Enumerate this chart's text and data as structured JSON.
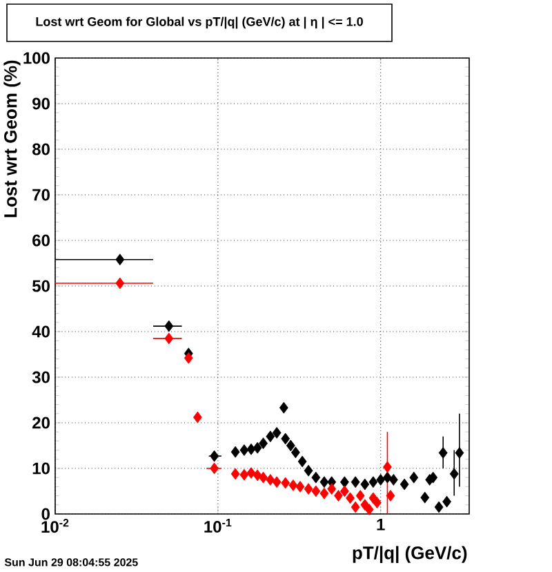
{
  "chart_data": {
    "type": "scatter",
    "title": "Lost wrt Geom for Global vs pT/|q| (GeV/c) at | η | <= 1.0",
    "xlabel": "pT/|q| (GeV/c)",
    "ylabel": "Lost wrt Geom (%)",
    "annotations": [
      "Sun Jun 29 08:04:55 2025"
    ],
    "log": "x",
    "grid": true,
    "marker": "diamond",
    "xlim": [
      0.01,
      3.5
    ],
    "ylim": [
      0,
      100
    ],
    "xticks": [
      {
        "value": 0.01,
        "label": "10$^{-2}$"
      },
      {
        "value": 0.1,
        "label": "10$^{-1}$"
      },
      1
    ],
    "yticks": [
      0,
      10,
      20,
      30,
      40,
      50,
      60,
      70,
      80,
      90,
      100
    ],
    "series": [
      {
        "color": "#000000",
        "x": [
          0.025,
          0.05,
          0.066,
          0.095,
          0.128,
          0.145,
          0.16,
          0.175,
          0.19,
          0.21,
          0.23,
          0.254,
          0.26,
          0.28,
          0.3,
          0.33,
          0.36,
          0.4,
          0.45,
          0.5,
          0.6,
          0.7,
          0.8,
          0.9,
          1.0,
          1.1,
          1.2,
          1.4,
          1.6,
          1.87,
          2.0,
          2.1,
          2.28,
          2.42,
          2.55,
          2.83,
          3.05
        ],
        "values": [
          55.8,
          41.2,
          35.2,
          12.7,
          13.6,
          14.0,
          14.2,
          14.5,
          15.5,
          17.0,
          17.8,
          23.3,
          16.5,
          15.0,
          13.5,
          11.5,
          9.5,
          8.0,
          7.0,
          7.0,
          7.0,
          7.0,
          6.5,
          7.0,
          7.5,
          8.0,
          7.5,
          6.5,
          8.0,
          3.6,
          7.5,
          8.0,
          1.5,
          13.4,
          2.7,
          8.8,
          13.4
        ],
        "xerrors": [
          [
            0.01,
            0.04
          ],
          [
            0.04,
            0.06
          ],
          null,
          [
            0.088,
            0.105
          ],
          null,
          null,
          null,
          null,
          null,
          null,
          null,
          null,
          null,
          null,
          null,
          null,
          null,
          null,
          null,
          null,
          null,
          null,
          null,
          null,
          null,
          null,
          null,
          null,
          null,
          null,
          null,
          null,
          null,
          null,
          null,
          null,
          null
        ],
        "errors": [
          null,
          null,
          null,
          null,
          null,
          null,
          null,
          null,
          null,
          null,
          null,
          null,
          null,
          null,
          null,
          null,
          null,
          null,
          null,
          null,
          null,
          null,
          null,
          null,
          null,
          null,
          null,
          null,
          null,
          null,
          null,
          null,
          null,
          [
            10,
            17
          ],
          null,
          [
            4,
            14
          ],
          [
            6,
            22
          ]
        ]
      },
      {
        "color": "#ff0000",
        "x": [
          0.025,
          0.05,
          0.066,
          0.075,
          0.095,
          0.128,
          0.145,
          0.16,
          0.175,
          0.19,
          0.21,
          0.23,
          0.26,
          0.29,
          0.32,
          0.36,
          0.4,
          0.45,
          0.5,
          0.55,
          0.6,
          0.65,
          0.7,
          0.75,
          0.8,
          0.85,
          0.9,
          0.95,
          1.1,
          1.15
        ],
        "values": [
          50.6,
          38.5,
          34.2,
          21.2,
          10.0,
          8.8,
          8.6,
          9.0,
          8.5,
          8.0,
          7.5,
          7.0,
          6.8,
          6.3,
          6.0,
          5.5,
          5.0,
          4.5,
          5.5,
          4.0,
          5.0,
          3.5,
          1.5,
          4.0,
          2.0,
          1.0,
          3.5,
          2.5,
          10.3,
          4.0
        ],
        "xerrors": [
          [
            0.01,
            0.04
          ],
          [
            0.04,
            0.06
          ],
          null,
          null,
          [
            0.085,
            0.105
          ],
          null,
          null,
          null,
          null,
          null,
          null,
          null,
          null,
          null,
          null,
          null,
          null,
          null,
          null,
          null,
          null,
          null,
          null,
          null,
          null,
          null,
          null,
          null,
          null,
          null
        ],
        "errors": [
          null,
          null,
          null,
          null,
          null,
          null,
          null,
          null,
          null,
          null,
          null,
          null,
          null,
          null,
          null,
          null,
          null,
          null,
          null,
          null,
          null,
          null,
          null,
          null,
          null,
          null,
          null,
          null,
          [
            0,
            18
          ],
          null
        ]
      }
    ]
  }
}
